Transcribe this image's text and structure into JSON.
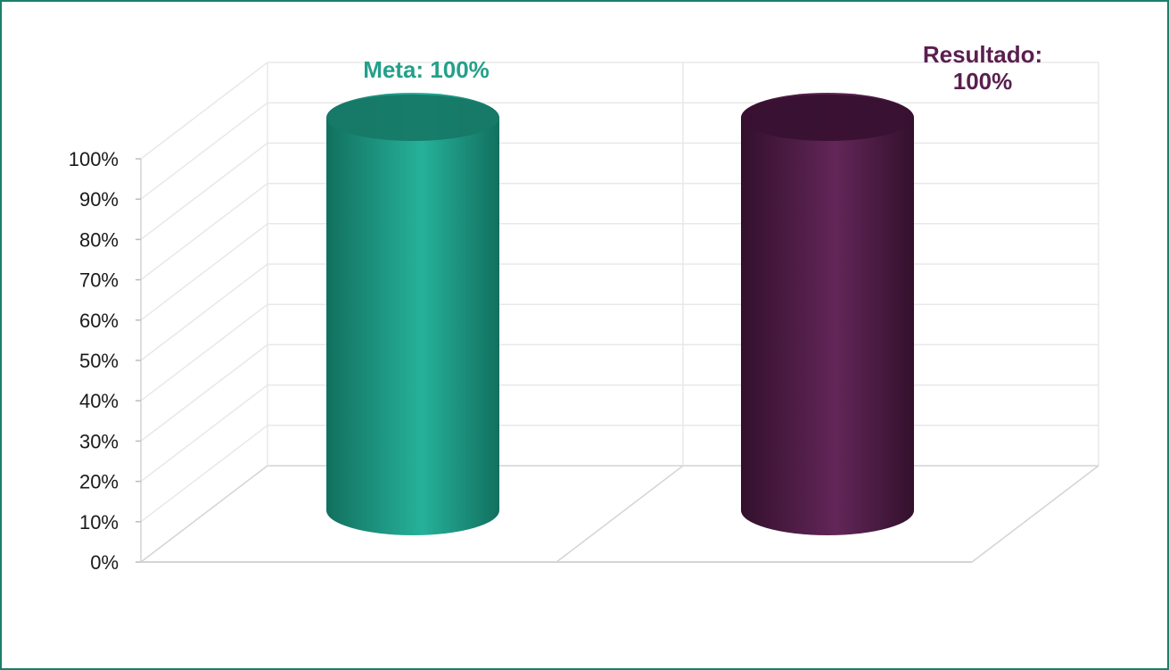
{
  "chart_data": {
    "type": "bar",
    "style": "3d-cylinder",
    "categories": [
      "Meta",
      "Resultado"
    ],
    "values": [
      100,
      100
    ],
    "data_labels": [
      {
        "lines": [
          "Meta: 100%"
        ],
        "color": "#24a08a"
      },
      {
        "lines": [
          "Resultado:",
          "100%"
        ],
        "color": "#5a1f4f"
      }
    ],
    "bar_colors": [
      "#1f9e87",
      "#4a1640"
    ],
    "y_ticks": [
      "0%",
      "10%",
      "20%",
      "30%",
      "40%",
      "50%",
      "60%",
      "70%",
      "80%",
      "90%",
      "100%"
    ],
    "ylim": [
      0,
      100
    ],
    "legend": "none",
    "grid": true,
    "title": "",
    "xlabel": "",
    "ylabel": ""
  }
}
